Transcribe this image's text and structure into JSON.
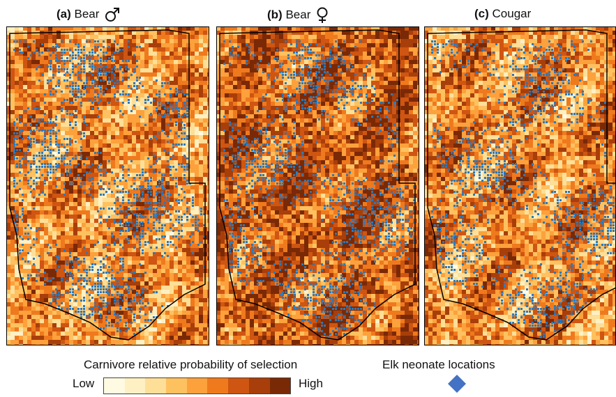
{
  "panels": [
    {
      "letter": "(a)",
      "name": "Bear",
      "symbol": "male-symbol-icon",
      "dark": 0.4,
      "blue": 0.35,
      "seed": 11
    },
    {
      "letter": "(b)",
      "name": "Bear",
      "symbol": "female-symbol-icon",
      "dark": 0.55,
      "blue": 0.3,
      "seed": 29
    },
    {
      "letter": "(c)",
      "name": "Cougar",
      "symbol": "",
      "dark": 0.42,
      "blue": 0.28,
      "seed": 47
    }
  ],
  "legend": {
    "selection_title": "Carnivore relative probability of selection",
    "low_label": "Low",
    "high_label": "High",
    "ramp_colors": [
      "#fffbe2",
      "#fff0c4",
      "#fedf98",
      "#fec160",
      "#fca13c",
      "#ef7a1d",
      "#cf5512",
      "#a83e0a",
      "#7a2906"
    ],
    "neonate_title": "Elk neonate locations",
    "neonate_color": "#4472c4"
  },
  "colors": {
    "blue_points": "#2f78b6",
    "boundary": "#000000"
  }
}
